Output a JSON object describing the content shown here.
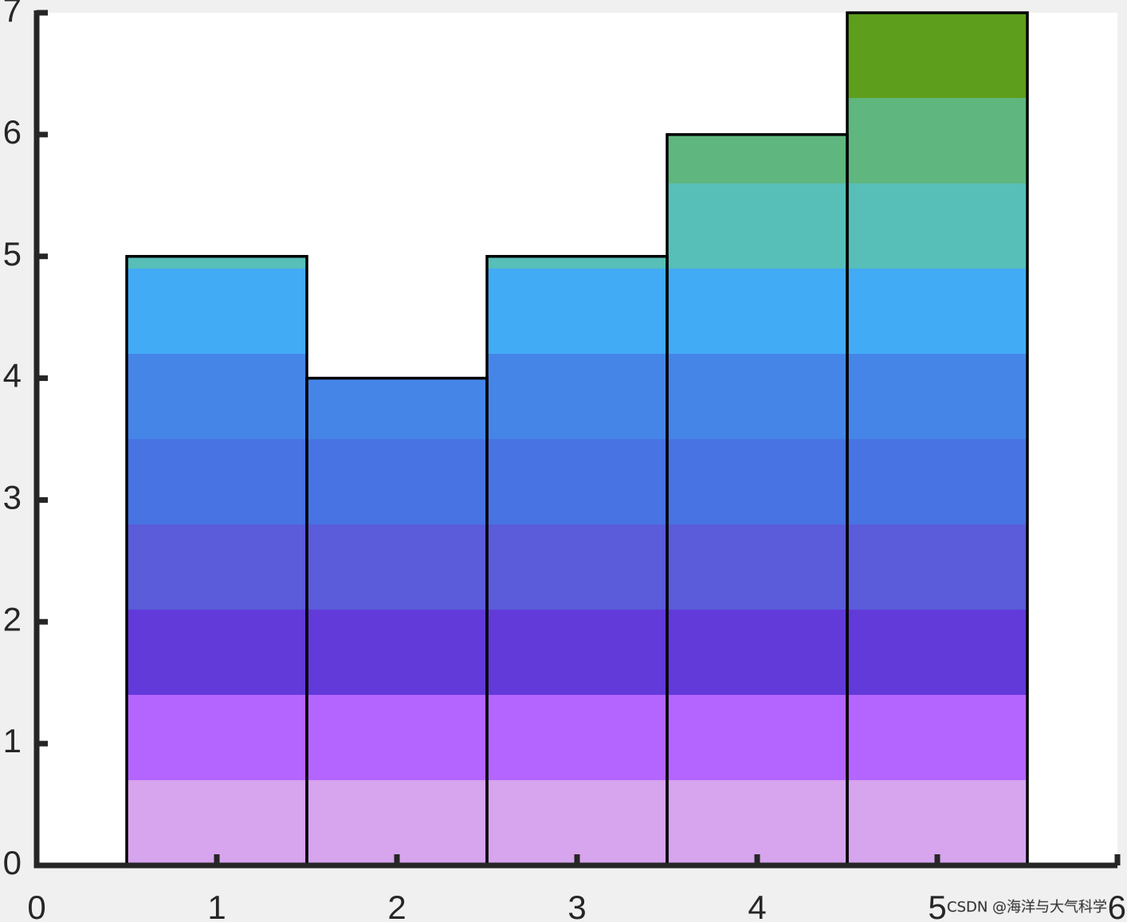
{
  "chart_data": {
    "type": "bar",
    "stacked": true,
    "title": "",
    "xlabel": "",
    "ylabel": "",
    "xlim": [
      0,
      6
    ],
    "ylim": [
      0,
      7
    ],
    "x_ticks": [
      "0",
      "1",
      "2",
      "3",
      "4",
      "5",
      "6"
    ],
    "y_ticks": [
      "0",
      "1",
      "2",
      "3",
      "4",
      "5",
      "6",
      "7"
    ],
    "grid": false,
    "legend": "none",
    "categories": [
      1,
      2,
      3,
      4,
      5
    ],
    "totals": [
      5,
      4,
      5,
      6,
      7
    ],
    "segment_boundaries": [
      0,
      0.7,
      1.4,
      2.1,
      2.8,
      3.5,
      4.2,
      4.9,
      5.6,
      6.3,
      7.0
    ],
    "segment_colors": [
      "#d7a4ee",
      "#b565ff",
      "#623ad9",
      "#5a5cd9",
      "#4873e3",
      "#4685e8",
      "#42abf5",
      "#57bfb8",
      "#5fb67e",
      "#5d9e1c"
    ],
    "background_color": "#ffffff",
    "figure_color": "#f0f0f0",
    "axis_color": "#262626",
    "bar_edge_color": "#000000"
  },
  "watermark": "CSDN @海洋与大气科学"
}
